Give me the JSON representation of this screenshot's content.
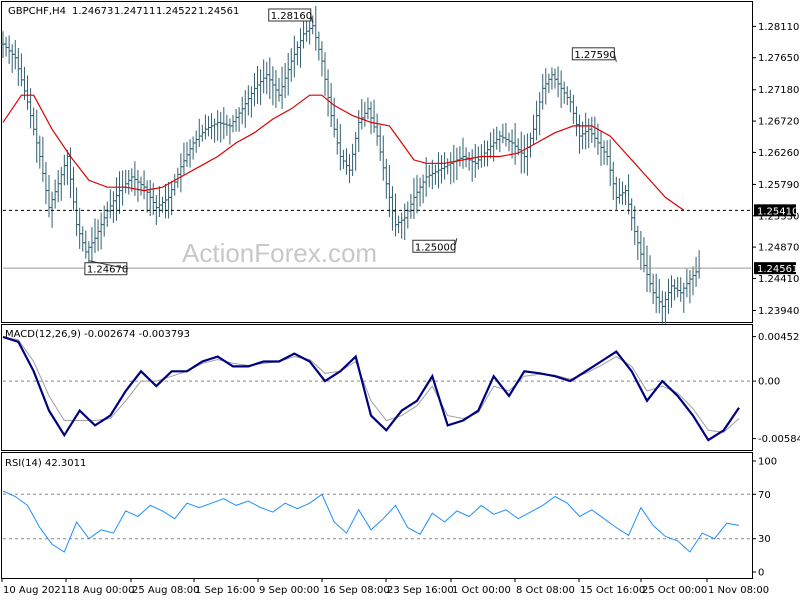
{
  "chart_data": [
    {
      "type": "candlestick",
      "panel": "price",
      "title": "GBPCHF,H4",
      "ohlc_header": [
        "1.24673",
        "1.24711",
        "1.24522",
        "1.24561"
      ],
      "ylim": [
        1.238,
        1.2838
      ],
      "y_ticks": [
        "1.28110",
        "1.27650",
        "1.27180",
        "1.26720",
        "1.26260",
        "1.25790",
        "1.25330",
        "1.24870",
        "1.24410",
        "1.23940"
      ],
      "ma_color": "#dd0000",
      "bar_color": "#2f5f6f",
      "callouts": [
        {
          "label": "1.28160",
          "value": 1.2816
        },
        {
          "label": "1.27590",
          "value": 1.2759
        },
        {
          "label": "1.25000",
          "value": 1.25
        },
        {
          "label": "1.24670",
          "value": 1.2467
        }
      ],
      "levels": [
        {
          "label": "1.25410",
          "value": 1.2541,
          "style": "dashed",
          "color": "#000000"
        },
        {
          "label": "1.24561",
          "value": 1.24561,
          "style": "solid",
          "color": "#999999"
        }
      ],
      "x_ticks": [
        "10 Aug 2021",
        "18 Aug 00:00",
        "25 Aug 08:00",
        "1 Sep 16:00",
        "9 Sep 00:00",
        "16 Sep 08:00",
        "23 Sep 16:00",
        "1 Oct 00:00",
        "8 Oct 08:00",
        "15 Oct 16:00",
        "25 Oct 00:00",
        "1 Nov 08:00"
      ],
      "close_path": [
        [
          0,
          1.2785
        ],
        [
          4,
          1.2765
        ],
        [
          8,
          1.27
        ],
        [
          12,
          1.262
        ],
        [
          15,
          1.2545
        ],
        [
          18,
          1.258
        ],
        [
          21,
          1.262
        ],
        [
          24,
          1.252
        ],
        [
          27,
          1.248
        ],
        [
          30,
          1.25
        ],
        [
          34,
          1.254
        ],
        [
          38,
          1.257
        ],
        [
          42,
          1.259
        ],
        [
          46,
          1.2575
        ],
        [
          50,
          1.2545
        ],
        [
          54,
          1.256
        ],
        [
          58,
          1.2605
        ],
        [
          62,
          1.264
        ],
        [
          66,
          1.266
        ],
        [
          70,
          1.267
        ],
        [
          74,
          1.2665
        ],
        [
          78,
          1.269
        ],
        [
          82,
          1.272
        ],
        [
          86,
          1.274
        ],
        [
          90,
          1.271
        ],
        [
          94,
          1.276
        ],
        [
          98,
          1.28
        ],
        [
          101,
          1.2812
        ],
        [
          104,
          1.276
        ],
        [
          107,
          1.268
        ],
        [
          110,
          1.262
        ],
        [
          113,
          1.26
        ],
        [
          116,
          1.267
        ],
        [
          119,
          1.269
        ],
        [
          122,
          1.265
        ],
        [
          125,
          1.258
        ],
        [
          128,
          1.252
        ],
        [
          131,
          1.253
        ],
        [
          134,
          1.256
        ],
        [
          138,
          1.259
        ],
        [
          142,
          1.26
        ],
        [
          146,
          1.261
        ],
        [
          150,
          1.262
        ],
        [
          154,
          1.261
        ],
        [
          158,
          1.263
        ],
        [
          162,
          1.265
        ],
        [
          166,
          1.264
        ],
        [
          170,
          1.262
        ],
        [
          173,
          1.266
        ],
        [
          176,
          1.272
        ],
        [
          179,
          1.274
        ],
        [
          182,
          1.272
        ],
        [
          185,
          1.27
        ],
        [
          188,
          1.265
        ],
        [
          191,
          1.266
        ],
        [
          194,
          1.264
        ],
        [
          197,
          1.262
        ],
        [
          200,
          1.256
        ],
        [
          203,
          1.257
        ],
        [
          206,
          1.251
        ],
        [
          209,
          1.246
        ],
        [
          212,
          1.242
        ],
        [
          215,
          1.24
        ],
        [
          218,
          1.243
        ],
        [
          221,
          1.242
        ],
        [
          224,
          1.244
        ],
        [
          227,
          1.2456
        ]
      ],
      "ma_path": [
        [
          0,
          1.267
        ],
        [
          6,
          1.271
        ],
        [
          10,
          1.271
        ],
        [
          16,
          1.266
        ],
        [
          22,
          1.262
        ],
        [
          28,
          1.2585
        ],
        [
          34,
          1.2575
        ],
        [
          40,
          1.2575
        ],
        [
          46,
          1.257
        ],
        [
          52,
          1.2575
        ],
        [
          58,
          1.259
        ],
        [
          64,
          1.2605
        ],
        [
          70,
          1.262
        ],
        [
          76,
          1.264
        ],
        [
          82,
          1.2655
        ],
        [
          88,
          1.2675
        ],
        [
          94,
          1.269
        ],
        [
          100,
          1.271
        ],
        [
          104,
          1.271
        ],
        [
          108,
          1.2695
        ],
        [
          114,
          1.268
        ],
        [
          120,
          1.267
        ],
        [
          126,
          1.2665
        ],
        [
          130,
          1.264
        ],
        [
          134,
          1.2615
        ],
        [
          138,
          1.261
        ],
        [
          144,
          1.261
        ],
        [
          150,
          1.2615
        ],
        [
          156,
          1.262
        ],
        [
          162,
          1.262
        ],
        [
          168,
          1.2625
        ],
        [
          174,
          1.264
        ],
        [
          180,
          1.2655
        ],
        [
          186,
          1.2665
        ],
        [
          192,
          1.2665
        ],
        [
          198,
          1.265
        ],
        [
          204,
          1.262
        ],
        [
          210,
          1.259
        ],
        [
          216,
          1.256
        ],
        [
          222,
          1.2541
        ]
      ]
    },
    {
      "type": "line",
      "panel": "macd",
      "title": "MACD(12,26,9) -0.002674 -0.003793",
      "ylim": [
        -0.0068,
        0.0052
      ],
      "y_ticks": [
        "0.004527",
        "0.00",
        "-0.005842"
      ],
      "zero_line": 0,
      "series": [
        {
          "color": "#000080",
          "values": [
            [
              0,
              0.0045
            ],
            [
              5,
              0.004
            ],
            [
              10,
              0.001
            ],
            [
              15,
              -0.003
            ],
            [
              20,
              -0.0055
            ],
            [
              25,
              -0.003
            ],
            [
              30,
              -0.0045
            ],
            [
              35,
              -0.0035
            ],
            [
              40,
              -0.001
            ],
            [
              45,
              0.001
            ],
            [
              50,
              -0.0005
            ],
            [
              55,
              0.001
            ],
            [
              60,
              0.001
            ],
            [
              65,
              0.002
            ],
            [
              70,
              0.0025
            ],
            [
              75,
              0.0015
            ],
            [
              80,
              0.0015
            ],
            [
              85,
              0.002
            ],
            [
              90,
              0.002
            ],
            [
              95,
              0.0028
            ],
            [
              100,
              0.002
            ],
            [
              105,
              0.0
            ],
            [
              110,
              0.001
            ],
            [
              115,
              0.0025
            ],
            [
              120,
              -0.0035
            ],
            [
              125,
              -0.005
            ],
            [
              130,
              -0.003
            ],
            [
              135,
              -0.002
            ],
            [
              140,
              0.0005
            ],
            [
              145,
              -0.0045
            ],
            [
              150,
              -0.004
            ],
            [
              155,
              -0.003
            ],
            [
              160,
              0.0005
            ],
            [
              165,
              -0.0015
            ],
            [
              170,
              0.001
            ],
            [
              175,
              0.0008
            ],
            [
              180,
              0.0005
            ],
            [
              185,
              0.0
            ],
            [
              190,
              0.001
            ],
            [
              195,
              0.002
            ],
            [
              200,
              0.003
            ],
            [
              205,
              0.001
            ],
            [
              210,
              -0.002
            ],
            [
              215,
              0.0
            ],
            [
              220,
              -0.0015
            ],
            [
              225,
              -0.0035
            ],
            [
              230,
              -0.006
            ],
            [
              235,
              -0.005
            ],
            [
              240,
              -0.0027
            ]
          ]
        },
        {
          "color": "#a0a0a0",
          "values": [
            [
              0,
              0.0045
            ],
            [
              5,
              0.0042
            ],
            [
              10,
              0.002
            ],
            [
              15,
              -0.0015
            ],
            [
              20,
              -0.004
            ],
            [
              25,
              -0.004
            ],
            [
              30,
              -0.004
            ],
            [
              35,
              -0.0038
            ],
            [
              40,
              -0.002
            ],
            [
              45,
              0.0
            ],
            [
              50,
              0.0
            ],
            [
              55,
              0.0005
            ],
            [
              60,
              0.001
            ],
            [
              65,
              0.0018
            ],
            [
              70,
              0.0022
            ],
            [
              75,
              0.0018
            ],
            [
              80,
              0.0016
            ],
            [
              85,
              0.0018
            ],
            [
              90,
              0.002
            ],
            [
              95,
              0.0025
            ],
            [
              100,
              0.0022
            ],
            [
              105,
              0.0008
            ],
            [
              110,
              0.001
            ],
            [
              115,
              0.002
            ],
            [
              120,
              -0.002
            ],
            [
              125,
              -0.004
            ],
            [
              130,
              -0.0035
            ],
            [
              135,
              -0.0025
            ],
            [
              140,
              -0.0005
            ],
            [
              145,
              -0.0035
            ],
            [
              150,
              -0.0038
            ],
            [
              155,
              -0.0032
            ],
            [
              160,
              -0.0005
            ],
            [
              165,
              -0.001
            ],
            [
              170,
              0.0005
            ],
            [
              175,
              0.0007
            ],
            [
              180,
              0.0006
            ],
            [
              185,
              0.0002
            ],
            [
              190,
              0.0008
            ],
            [
              195,
              0.0016
            ],
            [
              200,
              0.0025
            ],
            [
              205,
              0.0015
            ],
            [
              210,
              -0.001
            ],
            [
              215,
              -0.0005
            ],
            [
              220,
              -0.0012
            ],
            [
              225,
              -0.0028
            ],
            [
              230,
              -0.005
            ],
            [
              235,
              -0.0052
            ],
            [
              240,
              -0.0038
            ]
          ]
        }
      ]
    },
    {
      "type": "line",
      "panel": "rsi",
      "title": "RSI(14) 42.3011",
      "ylim": [
        0,
        100
      ],
      "y_ticks": [
        "100",
        "70",
        "30",
        "0"
      ],
      "levels": [
        70,
        30
      ],
      "series": [
        {
          "color": "#1e90ff",
          "values": [
            [
              0,
              73
            ],
            [
              4,
              68
            ],
            [
              8,
              60
            ],
            [
              12,
              40
            ],
            [
              16,
              25
            ],
            [
              20,
              18
            ],
            [
              24,
              45
            ],
            [
              28,
              30
            ],
            [
              32,
              38
            ],
            [
              36,
              35
            ],
            [
              40,
              55
            ],
            [
              44,
              50
            ],
            [
              48,
              60
            ],
            [
              52,
              55
            ],
            [
              56,
              48
            ],
            [
              60,
              62
            ],
            [
              64,
              58
            ],
            [
              68,
              62
            ],
            [
              72,
              66
            ],
            [
              76,
              60
            ],
            [
              80,
              64
            ],
            [
              84,
              58
            ],
            [
              88,
              54
            ],
            [
              92,
              62
            ],
            [
              96,
              57
            ],
            [
              100,
              62
            ],
            [
              104,
              70
            ],
            [
              108,
              45
            ],
            [
              112,
              35
            ],
            [
              116,
              56
            ],
            [
              120,
              38
            ],
            [
              124,
              48
            ],
            [
              128,
              60
            ],
            [
              132,
              40
            ],
            [
              136,
              34
            ],
            [
              140,
              53
            ],
            [
              144,
              45
            ],
            [
              148,
              55
            ],
            [
              152,
              50
            ],
            [
              156,
              60
            ],
            [
              160,
              52
            ],
            [
              164,
              56
            ],
            [
              168,
              48
            ],
            [
              172,
              54
            ],
            [
              176,
              60
            ],
            [
              180,
              68
            ],
            [
              184,
              62
            ],
            [
              188,
              50
            ],
            [
              192,
              56
            ],
            [
              196,
              48
            ],
            [
              200,
              40
            ],
            [
              204,
              33
            ],
            [
              208,
              58
            ],
            [
              212,
              42
            ],
            [
              216,
              32
            ],
            [
              220,
              28
            ],
            [
              224,
              18
            ],
            [
              228,
              35
            ],
            [
              232,
              30
            ],
            [
              236,
              44
            ],
            [
              240,
              42
            ]
          ]
        }
      ]
    }
  ],
  "watermark": "ActionForex.com"
}
